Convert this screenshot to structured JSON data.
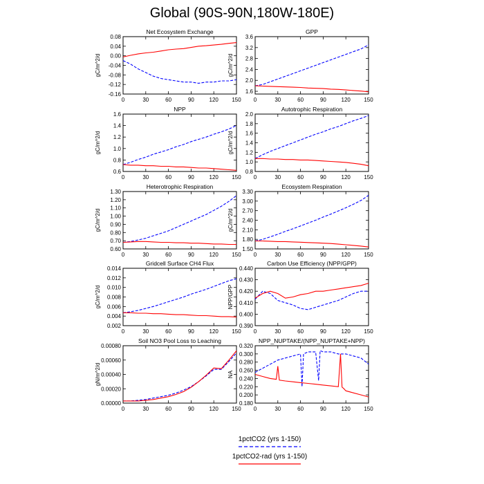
{
  "title": "Global (90S-90N,180W-180E)",
  "legend": [
    {
      "name": "1pctCO2 (yrs 1-150)",
      "color": "#0000ff",
      "dash": true
    },
    {
      "name": "1pctCO2-rad (yrs 1-150)",
      "color": "#ff0000",
      "dash": false
    }
  ],
  "chart_data": [
    {
      "type": "line",
      "title": "Net Ecosystem Exchange",
      "ylabel": "gC/m^2/d",
      "xlim": [
        0,
        150
      ],
      "ylim": [
        -0.16,
        0.08
      ],
      "xticks": [
        "0",
        "30",
        "60",
        "90",
        "120",
        "150"
      ],
      "yticks": [
        "-0.16",
        "-0.12",
        "-0.08",
        "-0.04",
        "0.00",
        "0.04",
        "0.08"
      ],
      "series": [
        {
          "color": "#0000ff",
          "dash": true,
          "x": [
            0,
            10,
            20,
            30,
            40,
            50,
            60,
            70,
            80,
            90,
            100,
            110,
            120,
            130,
            140,
            150
          ],
          "y": [
            -0.02,
            -0.035,
            -0.055,
            -0.07,
            -0.085,
            -0.095,
            -0.1,
            -0.105,
            -0.11,
            -0.11,
            -0.115,
            -0.11,
            -0.11,
            -0.105,
            -0.105,
            -0.1
          ]
        },
        {
          "color": "#ff0000",
          "dash": false,
          "x": [
            0,
            10,
            20,
            30,
            40,
            50,
            60,
            70,
            80,
            90,
            100,
            110,
            120,
            130,
            140,
            150
          ],
          "y": [
            -0.005,
            0.002,
            0.008,
            0.012,
            0.015,
            0.02,
            0.025,
            0.028,
            0.03,
            0.035,
            0.04,
            0.042,
            0.045,
            0.048,
            0.052,
            0.055
          ]
        }
      ]
    },
    {
      "type": "line",
      "title": "GPP",
      "ylabel": "gC/m^2/d",
      "xlim": [
        0,
        150
      ],
      "ylim": [
        1.5,
        3.6
      ],
      "xticks": [
        "0",
        "30",
        "60",
        "90",
        "120",
        "150"
      ],
      "yticks": [
        "1.6",
        "2.0",
        "2.4",
        "2.8",
        "3.2",
        "3.6"
      ],
      "series": [
        {
          "color": "#0000ff",
          "dash": true,
          "x": [
            0,
            10,
            20,
            30,
            40,
            50,
            60,
            70,
            80,
            90,
            100,
            110,
            120,
            130,
            140,
            150
          ],
          "y": [
            1.8,
            1.85,
            1.95,
            2.05,
            2.15,
            2.25,
            2.35,
            2.45,
            2.55,
            2.65,
            2.75,
            2.85,
            2.95,
            3.05,
            3.15,
            3.3
          ]
        },
        {
          "color": "#ff0000",
          "dash": false,
          "x": [
            0,
            10,
            20,
            30,
            40,
            50,
            60,
            70,
            80,
            90,
            100,
            110,
            120,
            130,
            140,
            150
          ],
          "y": [
            1.8,
            1.79,
            1.78,
            1.77,
            1.76,
            1.75,
            1.74,
            1.72,
            1.71,
            1.7,
            1.68,
            1.67,
            1.65,
            1.63,
            1.61,
            1.58
          ]
        }
      ]
    },
    {
      "type": "line",
      "title": "NPP",
      "ylabel": "gC/m^2/d",
      "xlim": [
        0,
        150
      ],
      "ylim": [
        0.6,
        1.6
      ],
      "xticks": [
        "0",
        "30",
        "60",
        "90",
        "120",
        "150"
      ],
      "yticks": [
        "0.6",
        "0.8",
        "1.0",
        "1.2",
        "1.4",
        "1.6"
      ],
      "series": [
        {
          "color": "#0000ff",
          "dash": true,
          "x": [
            0,
            10,
            20,
            30,
            40,
            50,
            60,
            70,
            80,
            90,
            100,
            110,
            120,
            130,
            140,
            150
          ],
          "y": [
            0.72,
            0.76,
            0.81,
            0.85,
            0.9,
            0.94,
            0.98,
            1.03,
            1.07,
            1.12,
            1.16,
            1.2,
            1.25,
            1.29,
            1.34,
            1.4
          ]
        },
        {
          "color": "#ff0000",
          "dash": false,
          "x": [
            0,
            10,
            20,
            30,
            40,
            50,
            60,
            70,
            80,
            90,
            100,
            110,
            120,
            130,
            140,
            150
          ],
          "y": [
            0.72,
            0.71,
            0.71,
            0.7,
            0.7,
            0.69,
            0.69,
            0.68,
            0.68,
            0.67,
            0.66,
            0.66,
            0.65,
            0.64,
            0.63,
            0.62
          ]
        }
      ]
    },
    {
      "type": "line",
      "title": "Autotrophic Respiration",
      "ylabel": "gC/m^2/d",
      "xlim": [
        0,
        150
      ],
      "ylim": [
        0.8,
        2.0
      ],
      "xticks": [
        "0",
        "30",
        "60",
        "90",
        "120",
        "150"
      ],
      "yticks": [
        "0.8",
        "1.0",
        "1.2",
        "1.4",
        "1.6",
        "1.8",
        "2.0"
      ],
      "series": [
        {
          "color": "#0000ff",
          "dash": true,
          "x": [
            0,
            10,
            20,
            30,
            40,
            50,
            60,
            70,
            80,
            90,
            100,
            110,
            120,
            130,
            140,
            150
          ],
          "y": [
            1.07,
            1.15,
            1.22,
            1.28,
            1.34,
            1.4,
            1.46,
            1.52,
            1.58,
            1.63,
            1.69,
            1.74,
            1.8,
            1.86,
            1.91,
            1.97
          ]
        },
        {
          "color": "#ff0000",
          "dash": false,
          "x": [
            0,
            10,
            20,
            30,
            40,
            50,
            60,
            70,
            80,
            90,
            100,
            110,
            120,
            130,
            140,
            150
          ],
          "y": [
            1.07,
            1.07,
            1.06,
            1.06,
            1.05,
            1.05,
            1.04,
            1.04,
            1.03,
            1.02,
            1.01,
            1.0,
            0.99,
            0.97,
            0.95,
            0.92
          ]
        }
      ]
    },
    {
      "type": "line",
      "title": "Heterotrophic Respiration",
      "ylabel": "gC/m^2/d",
      "xlim": [
        0,
        150
      ],
      "ylim": [
        0.6,
        1.3
      ],
      "xticks": [
        "0",
        "30",
        "60",
        "90",
        "120",
        "150"
      ],
      "yticks": [
        "0.60",
        "0.70",
        "0.80",
        "0.90",
        "1.00",
        "1.10",
        "1.20",
        "1.30"
      ],
      "series": [
        {
          "color": "#0000ff",
          "dash": true,
          "x": [
            0,
            10,
            20,
            30,
            40,
            50,
            60,
            70,
            80,
            90,
            100,
            110,
            120,
            130,
            140,
            150
          ],
          "y": [
            0.68,
            0.69,
            0.71,
            0.73,
            0.76,
            0.79,
            0.82,
            0.86,
            0.9,
            0.94,
            0.98,
            1.02,
            1.07,
            1.12,
            1.18,
            1.25
          ]
        },
        {
          "color": "#ff0000",
          "dash": false,
          "x": [
            0,
            10,
            20,
            30,
            40,
            50,
            60,
            70,
            80,
            90,
            100,
            110,
            120,
            130,
            140,
            150
          ],
          "y": [
            0.68,
            0.685,
            0.69,
            0.69,
            0.685,
            0.68,
            0.68,
            0.675,
            0.675,
            0.67,
            0.67,
            0.665,
            0.66,
            0.66,
            0.655,
            0.655
          ]
        }
      ]
    },
    {
      "type": "line",
      "title": "Ecosystem Respiration",
      "ylabel": "gC/m^2/d",
      "xlim": [
        0,
        150
      ],
      "ylim": [
        1.5,
        3.3
      ],
      "xticks": [
        "0",
        "30",
        "60",
        "90",
        "120",
        "150"
      ],
      "yticks": [
        "1.50",
        "1.80",
        "2.10",
        "2.40",
        "2.70",
        "3.00",
        "3.30"
      ],
      "series": [
        {
          "color": "#0000ff",
          "dash": true,
          "x": [
            0,
            10,
            20,
            30,
            40,
            50,
            60,
            70,
            80,
            90,
            100,
            110,
            120,
            130,
            140,
            150
          ],
          "y": [
            1.75,
            1.8,
            1.88,
            1.96,
            2.05,
            2.13,
            2.22,
            2.31,
            2.4,
            2.5,
            2.59,
            2.69,
            2.79,
            2.9,
            3.02,
            3.18
          ]
        },
        {
          "color": "#ff0000",
          "dash": false,
          "x": [
            0,
            10,
            20,
            30,
            40,
            50,
            60,
            70,
            80,
            90,
            100,
            110,
            120,
            130,
            140,
            150
          ],
          "y": [
            1.75,
            1.75,
            1.74,
            1.73,
            1.73,
            1.72,
            1.71,
            1.7,
            1.69,
            1.68,
            1.67,
            1.65,
            1.63,
            1.61,
            1.59,
            1.56
          ]
        }
      ]
    },
    {
      "type": "line",
      "title": "Gridcell Surface CH4 Flux",
      "ylabel": "gC/m^2/d",
      "xlim": [
        0,
        150
      ],
      "ylim": [
        0.002,
        0.014
      ],
      "xticks": [
        "0",
        "30",
        "60",
        "90",
        "120",
        "150"
      ],
      "yticks": [
        "0.002",
        "0.004",
        "0.006",
        "0.008",
        "0.010",
        "0.012",
        "0.014"
      ],
      "series": [
        {
          "color": "#0000ff",
          "dash": true,
          "x": [
            0,
            10,
            20,
            30,
            40,
            50,
            60,
            70,
            80,
            90,
            100,
            110,
            120,
            130,
            140,
            150
          ],
          "y": [
            0.0047,
            0.0049,
            0.0052,
            0.0056,
            0.006,
            0.0065,
            0.007,
            0.0075,
            0.008,
            0.0086,
            0.0091,
            0.0096,
            0.0102,
            0.0108,
            0.0114,
            0.0118
          ]
        },
        {
          "color": "#ff0000",
          "dash": false,
          "x": [
            0,
            10,
            20,
            30,
            40,
            50,
            60,
            70,
            80,
            90,
            100,
            110,
            120,
            130,
            140,
            150
          ],
          "y": [
            0.0047,
            0.0047,
            0.0046,
            0.0046,
            0.0045,
            0.0045,
            0.0044,
            0.0043,
            0.0043,
            0.0042,
            0.0041,
            0.0041,
            0.004,
            0.0039,
            0.0039,
            0.0038
          ]
        }
      ]
    },
    {
      "type": "line",
      "title": "Carbon Use Efficiency (NPP/GPP)",
      "ylabel": "NPP/GPP",
      "xlim": [
        0,
        150
      ],
      "ylim": [
        0.39,
        0.44
      ],
      "xticks": [
        "0",
        "30",
        "60",
        "90",
        "120",
        "150"
      ],
      "yticks": [
        "0.390",
        "0.400",
        "0.410",
        "0.420",
        "0.430",
        "0.440"
      ],
      "series": [
        {
          "color": "#0000ff",
          "dash": true,
          "x": [
            0,
            10,
            20,
            30,
            40,
            50,
            60,
            70,
            80,
            90,
            100,
            110,
            120,
            130,
            140,
            150
          ],
          "y": [
            0.413,
            0.42,
            0.418,
            0.412,
            0.41,
            0.408,
            0.405,
            0.404,
            0.406,
            0.408,
            0.41,
            0.412,
            0.415,
            0.418,
            0.42,
            0.42
          ]
        },
        {
          "color": "#ff0000",
          "dash": false,
          "x": [
            0,
            10,
            20,
            30,
            40,
            50,
            60,
            70,
            80,
            90,
            100,
            110,
            120,
            130,
            140,
            150
          ],
          "y": [
            0.414,
            0.418,
            0.42,
            0.418,
            0.414,
            0.415,
            0.417,
            0.418,
            0.42,
            0.42,
            0.421,
            0.422,
            0.423,
            0.424,
            0.425,
            0.427
          ]
        }
      ]
    },
    {
      "type": "line",
      "title": "Soil NO3 Pool Loss to Leaching",
      "ylabel": "gN/m^2/d",
      "xlim": [
        0,
        150
      ],
      "ylim": [
        0,
        0.0008
      ],
      "xticks": [
        "0",
        "30",
        "60",
        "90",
        "120",
        "150"
      ],
      "yticks": [
        "0.00000",
        "0.00020",
        "0.00040",
        "0.00060",
        "0.00080"
      ],
      "series": [
        {
          "color": "#0000ff",
          "dash": true,
          "x": [
            0,
            10,
            20,
            30,
            40,
            50,
            60,
            70,
            80,
            90,
            100,
            110,
            120,
            130,
            140,
            150
          ],
          "y": [
            3e-05,
            3e-05,
            4e-05,
            5e-05,
            7e-05,
            9e-05,
            0.00011,
            0.00014,
            0.00018,
            0.00023,
            0.0003,
            0.00038,
            0.00047,
            0.00047,
            0.00058,
            0.0007
          ]
        },
        {
          "color": "#ff0000",
          "dash": false,
          "x": [
            0,
            10,
            20,
            30,
            40,
            50,
            60,
            70,
            80,
            90,
            100,
            110,
            120,
            130,
            140,
            150
          ],
          "y": [
            3e-05,
            3e-05,
            3e-05,
            4e-05,
            5e-05,
            7e-05,
            9e-05,
            0.00012,
            0.00016,
            0.00022,
            0.0003,
            0.00039,
            0.00049,
            0.00048,
            0.0006,
            0.00073
          ]
        }
      ]
    },
    {
      "type": "line",
      "title": "NPP_NUPTAKE/(NPP_NUPTAKE+NPP)",
      "ylabel": "NA",
      "xlim": [
        0,
        150
      ],
      "ylim": [
        0.18,
        0.32
      ],
      "xticks": [
        "0",
        "30",
        "60",
        "90",
        "120",
        "150"
      ],
      "yticks": [
        "0.180",
        "0.200",
        "0.220",
        "0.240",
        "0.260",
        "0.280",
        "0.300",
        "0.320"
      ],
      "series": [
        {
          "color": "#0000ff",
          "dash": true,
          "x": [
            0,
            10,
            20,
            30,
            40,
            50,
            60,
            62,
            64,
            70,
            80,
            84,
            86,
            90,
            100,
            110,
            120,
            130,
            140,
            150
          ],
          "y": [
            0.255,
            0.265,
            0.275,
            0.285,
            0.29,
            0.295,
            0.3,
            0.22,
            0.3,
            0.305,
            0.305,
            0.235,
            0.308,
            0.305,
            0.305,
            0.3,
            0.3,
            0.295,
            0.29,
            0.275
          ]
        },
        {
          "color": "#ff0000",
          "dash": false,
          "x": [
            0,
            10,
            20,
            28,
            30,
            32,
            40,
            50,
            60,
            70,
            80,
            90,
            100,
            110,
            113,
            115,
            117,
            120,
            130,
            140,
            150
          ],
          "y": [
            0.25,
            0.245,
            0.24,
            0.238,
            0.27,
            0.236,
            0.234,
            0.232,
            0.23,
            0.228,
            0.226,
            0.224,
            0.222,
            0.22,
            0.3,
            0.219,
            0.216,
            0.21,
            0.205,
            0.2,
            0.195
          ]
        }
      ]
    }
  ]
}
